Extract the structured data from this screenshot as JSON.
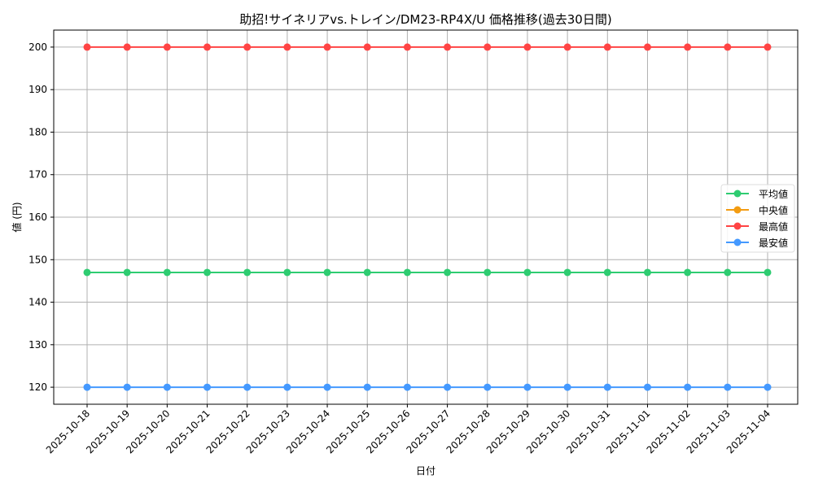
{
  "chart_data": {
    "type": "line",
    "title": "助招!サイネリアvs.トレイン/DM23-RP4X/U 価格推移(過去30日間)",
    "xlabel": "日付",
    "ylabel": "値 (円)",
    "ylim": [
      116,
      204
    ],
    "yticks": [
      120,
      130,
      140,
      150,
      160,
      170,
      180,
      190,
      200
    ],
    "grid": true,
    "legend_position": "center-right",
    "x": [
      "2025-10-18",
      "2025-10-19",
      "2025-10-20",
      "2025-10-21",
      "2025-10-22",
      "2025-10-23",
      "2025-10-24",
      "2025-10-25",
      "2025-10-26",
      "2025-10-27",
      "2025-10-28",
      "2025-10-29",
      "2025-10-30",
      "2025-10-31",
      "2025-11-01",
      "2025-11-02",
      "2025-11-03",
      "2025-11-04"
    ],
    "series": [
      {
        "name": "平均値",
        "color": "#2ecc71",
        "values": [
          147,
          147,
          147,
          147,
          147,
          147,
          147,
          147,
          147,
          147,
          147,
          147,
          147,
          147,
          147,
          147,
          147,
          147
        ]
      },
      {
        "name": "中央値",
        "color": "#f39c12",
        "values": [
          null,
          null,
          null,
          null,
          null,
          null,
          null,
          null,
          null,
          null,
          null,
          null,
          null,
          null,
          null,
          null,
          null,
          null
        ]
      },
      {
        "name": "最高値",
        "color": "#ff4444",
        "values": [
          200,
          200,
          200,
          200,
          200,
          200,
          200,
          200,
          200,
          200,
          200,
          200,
          200,
          200,
          200,
          200,
          200,
          200
        ]
      },
      {
        "name": "最安値",
        "color": "#4499ff",
        "values": [
          120,
          120,
          120,
          120,
          120,
          120,
          120,
          120,
          120,
          120,
          120,
          120,
          120,
          120,
          120,
          120,
          120,
          120
        ]
      }
    ]
  }
}
